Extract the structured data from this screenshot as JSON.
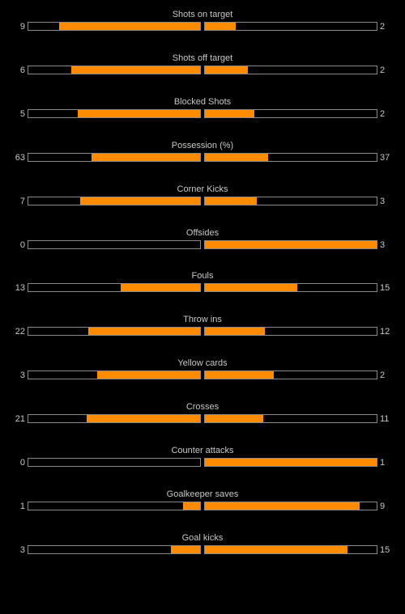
{
  "colors": {
    "background": "#000000",
    "text": "#c8c8c8",
    "bar_fill": "#ff8c00",
    "bar_border": "#8a8a8a"
  },
  "stats": [
    {
      "label": "Shots on target",
      "home": "9",
      "away": "2",
      "home_fill": 0.82,
      "away_fill": 0.18
    },
    {
      "label": "Shots off target",
      "home": "6",
      "away": "2",
      "home_fill": 0.75,
      "away_fill": 0.25
    },
    {
      "label": "Blocked Shots",
      "home": "5",
      "away": "2",
      "home_fill": 0.71,
      "away_fill": 0.29
    },
    {
      "label": "Possession (%)",
      "home": "63",
      "away": "37",
      "home_fill": 0.63,
      "away_fill": 0.37
    },
    {
      "label": "Corner Kicks",
      "home": "7",
      "away": "3",
      "home_fill": 0.7,
      "away_fill": 0.3
    },
    {
      "label": "Offsides",
      "home": "0",
      "away": "3",
      "home_fill": 0.0,
      "away_fill": 1.0
    },
    {
      "label": "Fouls",
      "home": "13",
      "away": "15",
      "home_fill": 0.46,
      "away_fill": 0.54
    },
    {
      "label": "Throw ins",
      "home": "22",
      "away": "12",
      "home_fill": 0.65,
      "away_fill": 0.35
    },
    {
      "label": "Yellow cards",
      "home": "3",
      "away": "2",
      "home_fill": 0.6,
      "away_fill": 0.4
    },
    {
      "label": "Crosses",
      "home": "21",
      "away": "11",
      "home_fill": 0.66,
      "away_fill": 0.34
    },
    {
      "label": "Counter attacks",
      "home": "0",
      "away": "1",
      "home_fill": 0.0,
      "away_fill": 1.0
    },
    {
      "label": "Goalkeeper saves",
      "home": "1",
      "away": "9",
      "home_fill": 0.1,
      "away_fill": 0.9
    },
    {
      "label": "Goal kicks",
      "home": "3",
      "away": "15",
      "home_fill": 0.17,
      "away_fill": 0.83
    }
  ]
}
